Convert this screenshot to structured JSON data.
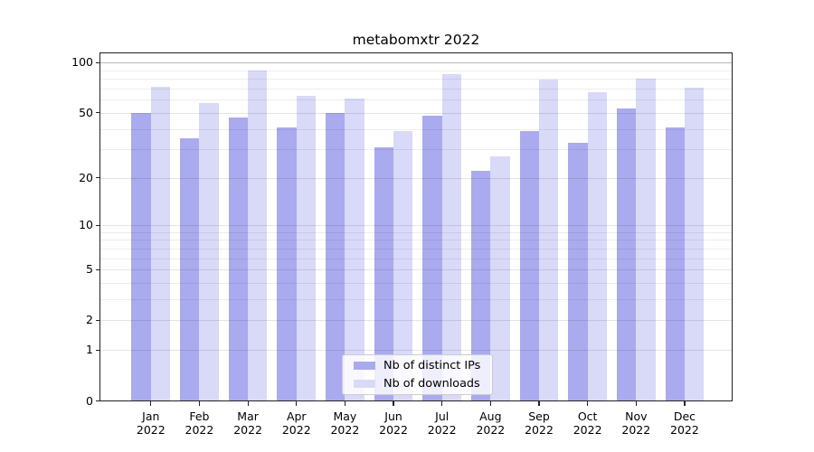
{
  "title": "metabomxtr 2022",
  "colors": {
    "distinct_ips": "#aaaaee",
    "downloads": "#d9d9f8",
    "grid_minor": "rgba(0,0,0,0.07)",
    "grid_major": "rgba(0,0,0,0.10)",
    "grid_top": "rgba(0,0,0,0.28)",
    "axis_border": "#222222",
    "text": "#000000"
  },
  "legend": {
    "items": [
      {
        "label": "Nb of distinct IPs",
        "series": "distinct_ips"
      },
      {
        "label": "Nb of downloads",
        "series": "downloads"
      }
    ]
  },
  "chart_data": {
    "type": "bar",
    "title": "metabomxtr 2022",
    "categories": [
      "Jan 2022",
      "Feb 2022",
      "Mar 2022",
      "Apr 2022",
      "May 2022",
      "Jun 2022",
      "Jul 2022",
      "Aug 2022",
      "Sep 2022",
      "Oct 2022",
      "Nov 2022",
      "Dec 2022"
    ],
    "series": [
      {
        "name": "Nb of distinct IPs",
        "key": "distinct_ips",
        "values": [
          50,
          35,
          47,
          41,
          50,
          31,
          48,
          22,
          39,
          33,
          53,
          41
        ]
      },
      {
        "name": "Nb of downloads",
        "key": "downloads",
        "values": [
          72,
          57,
          90,
          63,
          61,
          39,
          86,
          27,
          79,
          67,
          80,
          71
        ]
      }
    ],
    "xlabel": "",
    "ylabel": "",
    "yscale": "symlog",
    "yticks": [
      0,
      1,
      2,
      5,
      10,
      20,
      50,
      100
    ],
    "ylim": [
      0,
      117
    ],
    "grid": true,
    "legend_position": "lower center"
  }
}
